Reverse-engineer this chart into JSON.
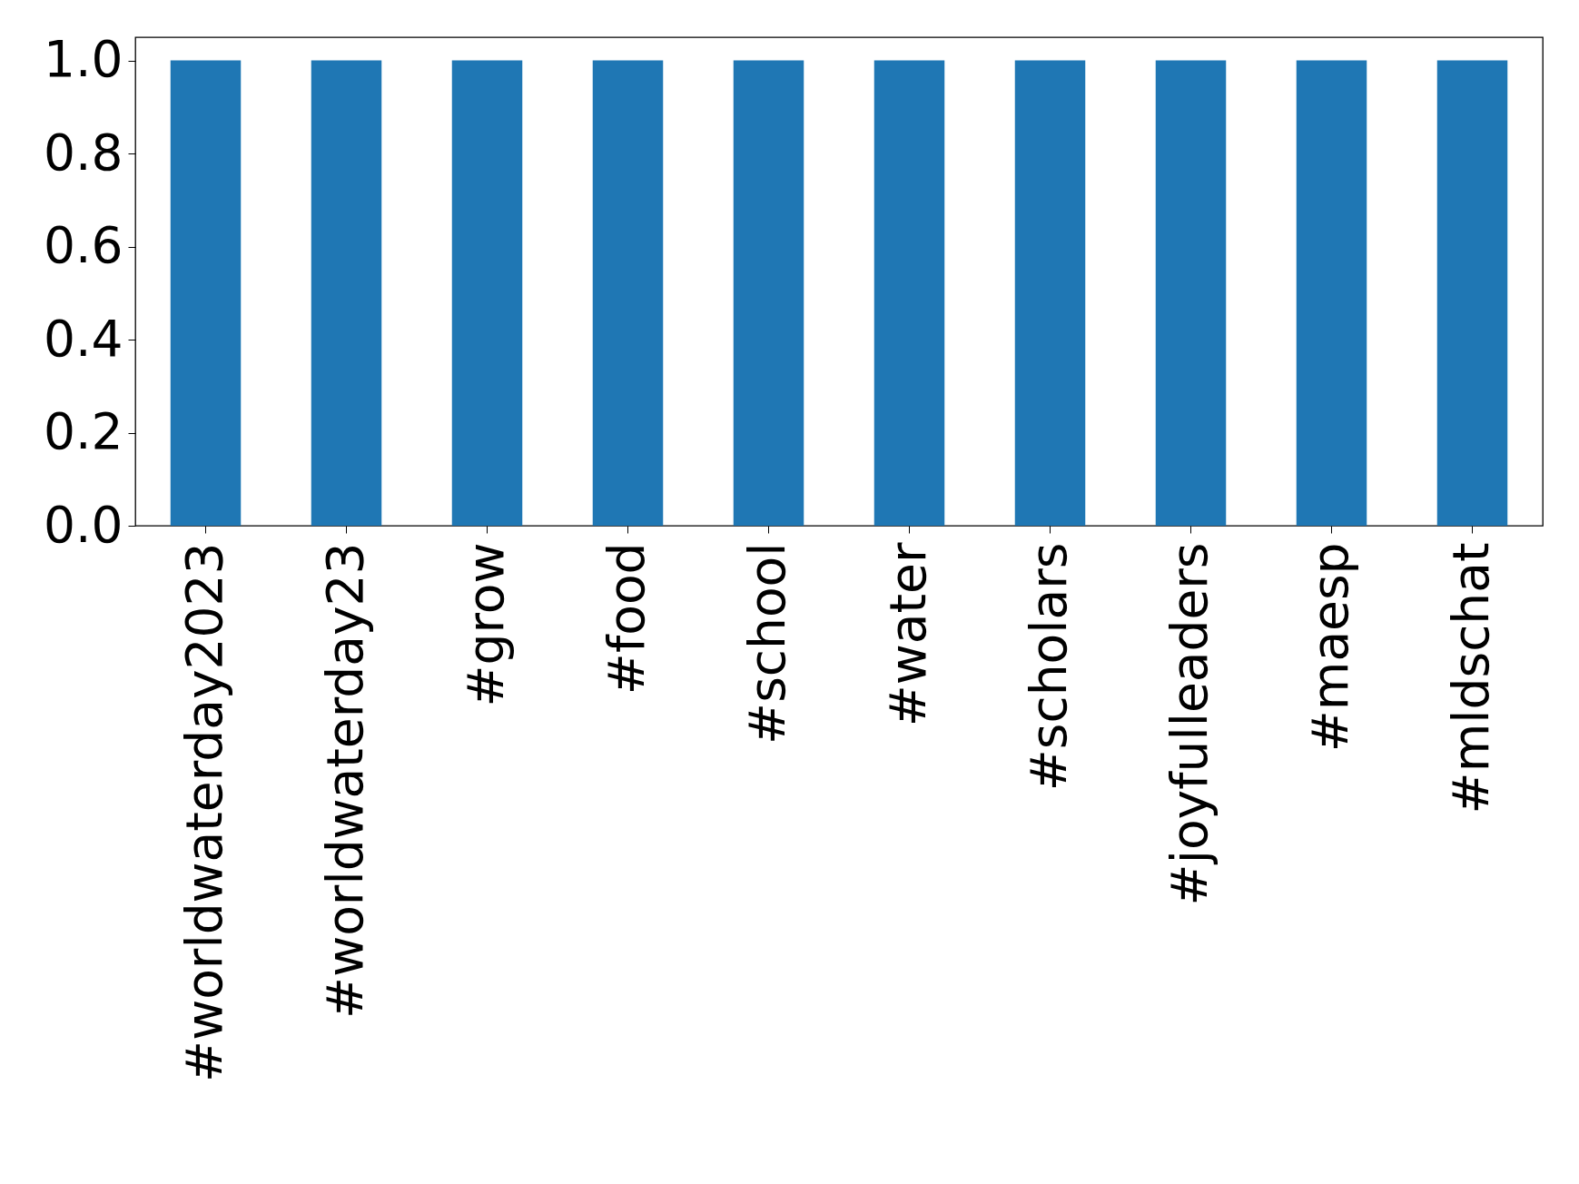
{
  "chart_data": {
    "type": "bar",
    "categories": [
      "#worldwaterday2023",
      "#worldwaterday23",
      "#grow",
      "#food",
      "#school",
      "#water",
      "#scholars",
      "#joyfulleaders",
      "#maesp",
      "#mldschat"
    ],
    "values": [
      1,
      1,
      1,
      1,
      1,
      1,
      1,
      1,
      1,
      1
    ],
    "color": "#1f77b4",
    "ylim": [
      0,
      1.05
    ],
    "yticks": [
      {
        "value": 0,
        "label": "0.0"
      },
      {
        "value": 0.2,
        "label": "0.2"
      },
      {
        "value": 0.4,
        "label": "0.4"
      },
      {
        "value": 0.6,
        "label": "0.6"
      },
      {
        "value": 0.8,
        "label": "0.8"
      },
      {
        "value": 1,
        "label": "1.0"
      }
    ],
    "grid": false,
    "legend": false
  }
}
